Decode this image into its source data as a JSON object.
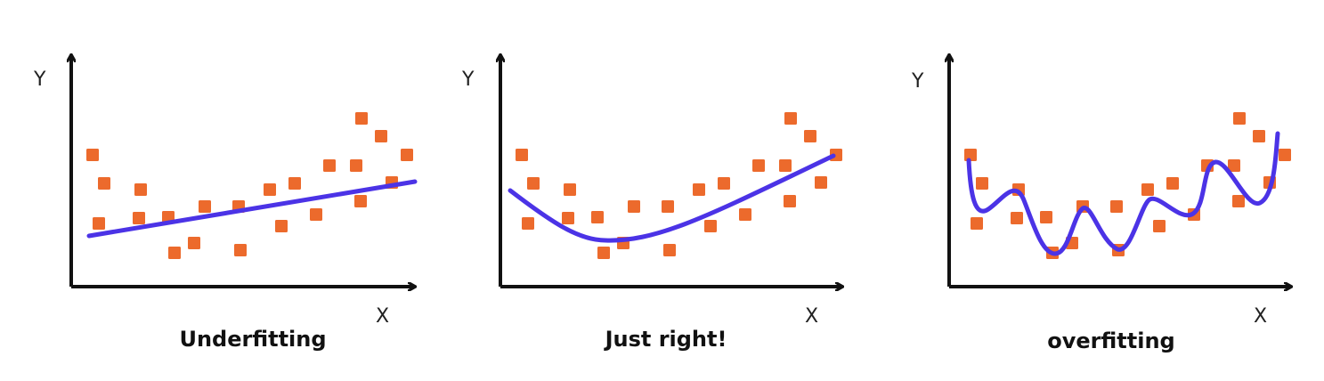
{
  "colors": {
    "background": "#ffffff",
    "axis": "#111111",
    "points": "#ec6a2c",
    "curve": "#4b33e6"
  },
  "panels": [
    {
      "caption": "Underfitting",
      "x_axis_label": "X",
      "y_axis_label": "Y",
      "fit": "linear"
    },
    {
      "caption": "Just right!",
      "x_axis_label": "X",
      "y_axis_label": "Y",
      "fit": "quadratic"
    },
    {
      "caption": "overfitting",
      "x_axis_label": "X",
      "y_axis_label": "Y",
      "fit": "wiggly"
    }
  ]
}
